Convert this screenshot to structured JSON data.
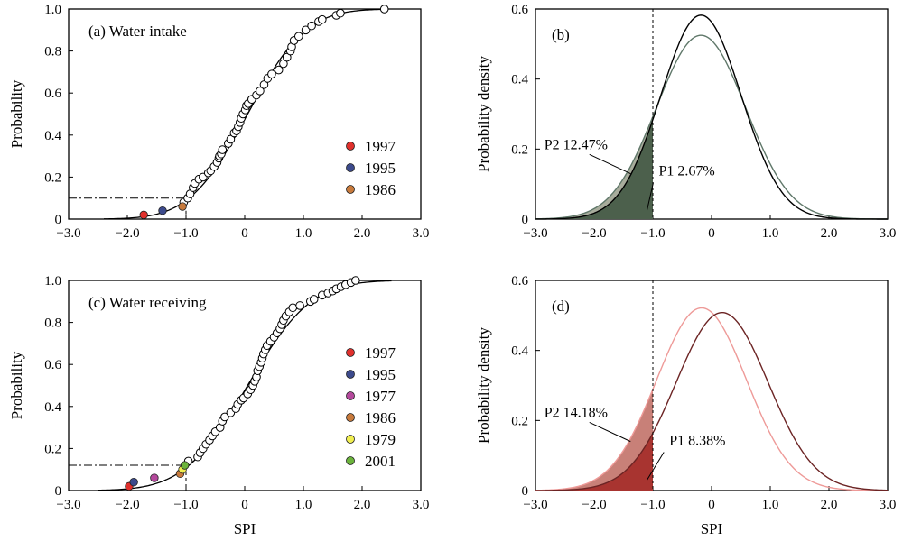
{
  "colors": {
    "axis": "#000000",
    "b_fill_outer": "#a8ac9c",
    "b_fill_inner": "#4c604c",
    "b_curve_1": "#000000",
    "b_curve_2": "#60786a",
    "d_fill_outer": "#c88078",
    "d_fill_inner": "#a83430",
    "d_curve_1": "#6c2424",
    "d_curve_2": "#ee9a98"
  },
  "chart_data": [
    {
      "panel": "a",
      "type": "scatter",
      "title": "(a) Water intake",
      "xlabel": "",
      "ylabel": "Probability",
      "xlim": [
        -3.0,
        3.0
      ],
      "ylim": [
        0,
        1.0
      ],
      "xticks": [
        "−3.0",
        "−2.0",
        "−1.0",
        "0",
        "1.0",
        "2.0",
        "3.0"
      ],
      "yticks": [
        "0",
        "0.2",
        "0.4",
        "0.6",
        "0.8",
        "1.0"
      ],
      "fit_curve": {
        "type": "normal_cdf",
        "mean": 0.05,
        "sd": 0.78,
        "x_range": [
          -2.4,
          2.4
        ]
      },
      "threshold": {
        "x": -1.0,
        "y": 0.1,
        "style": "dash-dot"
      },
      "highlighted_points": [
        {
          "label": "1997",
          "x": -1.72,
          "y": 0.02,
          "color": "#e0302c"
        },
        {
          "label": "1995",
          "x": -1.4,
          "y": 0.04,
          "color": "#3c4a8c"
        },
        {
          "label": "1986",
          "x": -1.06,
          "y": 0.06,
          "color": "#c87a3c"
        }
      ],
      "points": [
        [
          -1.04,
          0.08
        ],
        [
          -0.97,
          0.1
        ],
        [
          -0.93,
          0.12
        ],
        [
          -0.88,
          0.15
        ],
        [
          -0.85,
          0.17
        ],
        [
          -0.78,
          0.19
        ],
        [
          -0.71,
          0.2
        ],
        [
          -0.62,
          0.22
        ],
        [
          -0.58,
          0.23
        ],
        [
          -0.52,
          0.25
        ],
        [
          -0.47,
          0.27
        ],
        [
          -0.44,
          0.29
        ],
        [
          -0.43,
          0.3
        ],
        [
          -0.4,
          0.31
        ],
        [
          -0.38,
          0.33
        ],
        [
          -0.28,
          0.36
        ],
        [
          -0.24,
          0.38
        ],
        [
          -0.18,
          0.41
        ],
        [
          -0.14,
          0.42
        ],
        [
          -0.11,
          0.44
        ],
        [
          -0.08,
          0.46
        ],
        [
          -0.06,
          0.48
        ],
        [
          -0.03,
          0.5
        ],
        [
          0.01,
          0.52
        ],
        [
          0.03,
          0.54
        ],
        [
          0.06,
          0.55
        ],
        [
          0.12,
          0.57
        ],
        [
          0.2,
          0.59
        ],
        [
          0.26,
          0.61
        ],
        [
          0.33,
          0.64
        ],
        [
          0.39,
          0.67
        ],
        [
          0.46,
          0.69
        ],
        [
          0.58,
          0.71
        ],
        [
          0.66,
          0.74
        ],
        [
          0.72,
          0.77
        ],
        [
          0.78,
          0.8
        ],
        [
          0.8,
          0.82
        ],
        [
          0.84,
          0.85
        ],
        [
          0.92,
          0.87
        ],
        [
          1.04,
          0.9
        ],
        [
          1.14,
          0.92
        ],
        [
          1.26,
          0.94
        ],
        [
          1.32,
          0.95
        ],
        [
          1.56,
          0.97
        ],
        [
          1.63,
          0.98
        ],
        [
          2.38,
          1.0
        ]
      ]
    },
    {
      "panel": "b",
      "type": "area",
      "title": "(b)",
      "xlabel": "",
      "ylabel": "Probability density",
      "xlim": [
        -3.0,
        3.0
      ],
      "ylim": [
        0,
        0.6
      ],
      "xticks": [
        "−3.0",
        "−2.0",
        "−1.0",
        "0",
        "1.0",
        "2.0",
        "3.0"
      ],
      "yticks": [
        "0",
        "0.2",
        "0.4",
        "0.6"
      ],
      "threshold_x": -1.0,
      "series": [
        {
          "curve": "normal_pdf",
          "mean": -0.18,
          "sd": 0.685,
          "area_below_threshold_percent": 2.67
        },
        {
          "curve": "normal_pdf",
          "mean": -0.18,
          "sd": 0.76,
          "area_below_threshold_percent": 12.47
        }
      ],
      "annotations": [
        {
          "text": "P2 12.47%",
          "x": -2.85,
          "y": 0.2
        },
        {
          "text": "P1 2.67%",
          "x": -0.9,
          "y": 0.125
        }
      ]
    },
    {
      "panel": "c",
      "type": "scatter",
      "title": "(c) Water receiving",
      "xlabel": "SPI",
      "ylabel": "Probability",
      "xlim": [
        -3.0,
        3.0
      ],
      "ylim": [
        0,
        1.0
      ],
      "xticks": [
        "−3.0",
        "−2.0",
        "−1.0",
        "0",
        "1.0",
        "2.0",
        "3.0"
      ],
      "yticks": [
        "0",
        "0.2",
        "0.4",
        "0.6",
        "0.8",
        "1.0"
      ],
      "fit_curve": {
        "type": "normal_cdf",
        "mean": 0.05,
        "sd": 0.85,
        "x_range": [
          -2.5,
          2.5
        ]
      },
      "threshold": {
        "x": -1.0,
        "y": 0.12,
        "style": "dash-dot"
      },
      "highlighted_points": [
        {
          "label": "1997",
          "x": -1.97,
          "y": 0.02,
          "color": "#e0302c"
        },
        {
          "label": "1995",
          "x": -1.89,
          "y": 0.04,
          "color": "#3c4a8c"
        },
        {
          "label": "1977",
          "x": -1.54,
          "y": 0.06,
          "color": "#b4489c"
        },
        {
          "label": "1986",
          "x": -1.1,
          "y": 0.08,
          "color": "#c87a3c"
        },
        {
          "label": "1979",
          "x": -1.06,
          "y": 0.1,
          "color": "#f0ee50"
        },
        {
          "label": "2001",
          "x": -1.02,
          "y": 0.12,
          "color": "#6cb43c"
        }
      ],
      "points": [
        [
          -0.96,
          0.14
        ],
        [
          -0.8,
          0.16
        ],
        [
          -0.76,
          0.18
        ],
        [
          -0.71,
          0.2
        ],
        [
          -0.66,
          0.22
        ],
        [
          -0.6,
          0.24
        ],
        [
          -0.55,
          0.26
        ],
        [
          -0.5,
          0.28
        ],
        [
          -0.42,
          0.3
        ],
        [
          -0.38,
          0.33
        ],
        [
          -0.34,
          0.35
        ],
        [
          -0.24,
          0.37
        ],
        [
          -0.15,
          0.39
        ],
        [
          -0.12,
          0.41
        ],
        [
          -0.06,
          0.43
        ],
        [
          -0.02,
          0.44
        ],
        [
          0.05,
          0.46
        ],
        [
          0.1,
          0.48
        ],
        [
          0.14,
          0.5
        ],
        [
          0.17,
          0.52
        ],
        [
          0.2,
          0.54
        ],
        [
          0.22,
          0.57
        ],
        [
          0.25,
          0.59
        ],
        [
          0.28,
          0.61
        ],
        [
          0.3,
          0.63
        ],
        [
          0.32,
          0.65
        ],
        [
          0.35,
          0.67
        ],
        [
          0.38,
          0.69
        ],
        [
          0.44,
          0.71
        ],
        [
          0.5,
          0.73
        ],
        [
          0.55,
          0.75
        ],
        [
          0.6,
          0.77
        ],
        [
          0.63,
          0.79
        ],
        [
          0.66,
          0.81
        ],
        [
          0.7,
          0.83
        ],
        [
          0.76,
          0.85
        ],
        [
          0.82,
          0.87
        ],
        [
          0.94,
          0.88
        ],
        [
          1.12,
          0.9
        ],
        [
          1.18,
          0.91
        ],
        [
          1.32,
          0.93
        ],
        [
          1.42,
          0.94
        ],
        [
          1.5,
          0.95
        ],
        [
          1.56,
          0.96
        ],
        [
          1.64,
          0.97
        ],
        [
          1.72,
          0.98
        ],
        [
          1.81,
          0.99
        ],
        [
          1.89,
          1.0
        ]
      ]
    },
    {
      "panel": "d",
      "type": "area",
      "title": "(d)",
      "xlabel": "SPI",
      "ylabel": "Probability density",
      "xlim": [
        -3.0,
        3.0
      ],
      "ylim": [
        0,
        0.6
      ],
      "xticks": [
        "−3.0",
        "−2.0",
        "−1.0",
        "0",
        "1.0",
        "2.0",
        "3.0"
      ],
      "yticks": [
        "0",
        "0.2",
        "0.4",
        "0.6"
      ],
      "threshold_x": -1.0,
      "series": [
        {
          "curve": "normal_pdf",
          "mean": 0.18,
          "sd": 0.785,
          "area_below_threshold_percent": 8.38
        },
        {
          "curve": "normal_pdf",
          "mean": -0.17,
          "sd": 0.765,
          "area_below_threshold_percent": 14.18
        }
      ],
      "annotations": [
        {
          "text": "P2 14.18%",
          "x": -2.85,
          "y": 0.21
        },
        {
          "text": "P1 8.38%",
          "x": -0.72,
          "y": 0.13
        }
      ]
    }
  ]
}
